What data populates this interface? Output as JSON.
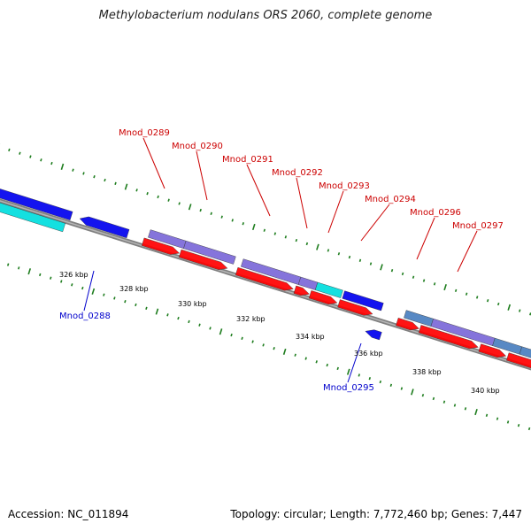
{
  "title": "Methylobacterium nodulans ORS 2060, complete genome",
  "footer": {
    "accession": "Accession: NC_011894",
    "summary": "Topology: circular; Length: 7,772,460 bp; Genes: 7,447"
  },
  "colors": {
    "backbone": "#808080",
    "tick": "#1e7d1e",
    "cds": "#ff0000",
    "gene_top_label": "#cc0000",
    "gene_bottom_label": "#0000cc",
    "blue_feature": "#0000ee",
    "cyan_feature": "#00dddd",
    "violet_feature": "#7b68d8",
    "steel_feature": "#4a7fbf"
  },
  "scale_labels": [
    "326 kbp",
    "328 kbp",
    "330 kbp",
    "332 kbp",
    "334 kbp",
    "336 kbp",
    "338 kbp",
    "340 kbp"
  ],
  "gene_labels": [
    {
      "id": "Mnod_0288",
      "strand": "bottom"
    },
    {
      "id": "Mnod_0289",
      "strand": "top"
    },
    {
      "id": "Mnod_0290",
      "strand": "top"
    },
    {
      "id": "Mnod_0291",
      "strand": "top"
    },
    {
      "id": "Mnod_0292",
      "strand": "top"
    },
    {
      "id": "Mnod_0293",
      "strand": "top"
    },
    {
      "id": "Mnod_0294",
      "strand": "top"
    },
    {
      "id": "Mnod_0295",
      "strand": "bottom"
    },
    {
      "id": "Mnod_0296",
      "strand": "top"
    },
    {
      "id": "Mnod_0297",
      "strand": "top"
    }
  ]
}
